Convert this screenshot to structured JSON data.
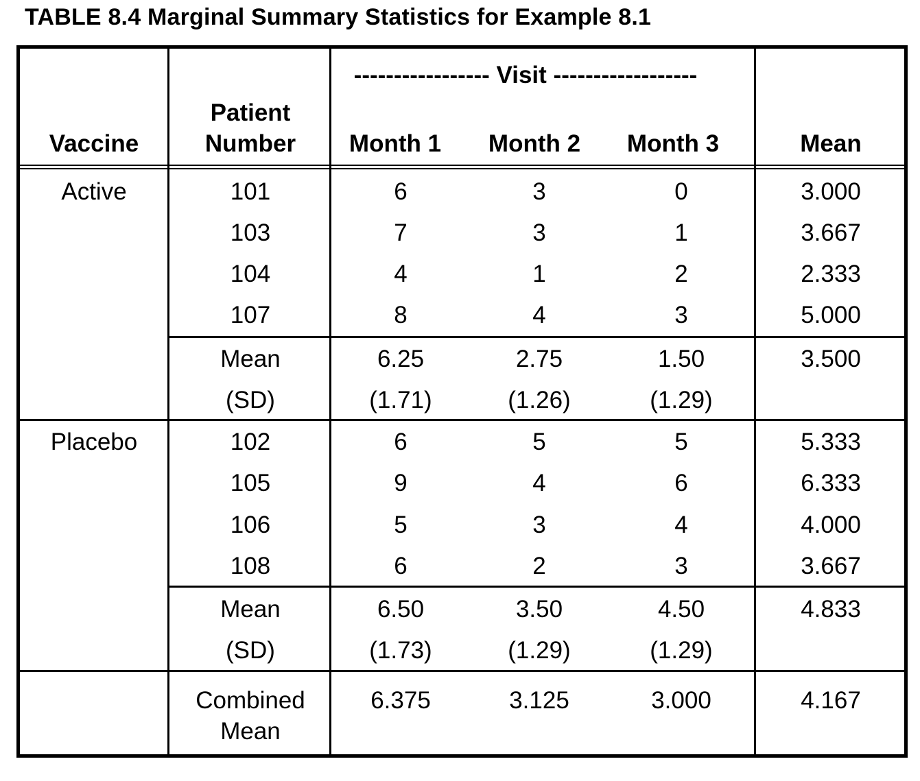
{
  "title": "TABLE 8.4  Marginal Summary Statistics for Example 8.1",
  "headers": {
    "vaccine": "Vaccine",
    "patient_line1": "Patient",
    "patient_line2": "Number",
    "visit": "----------------- Visit ------------------",
    "month1": "Month 1",
    "month2": "Month 2",
    "month3": "Month 3",
    "mean": "Mean"
  },
  "groups": [
    {
      "vaccine": "Active",
      "rows": [
        {
          "patient": "101",
          "m1": "6",
          "m2": "3",
          "m3": "0",
          "mean": "3.000"
        },
        {
          "patient": "103",
          "m1": "7",
          "m2": "3",
          "m3": "1",
          "mean": "3.667"
        },
        {
          "patient": "104",
          "m1": "4",
          "m2": "1",
          "m3": "2",
          "mean": "2.333"
        },
        {
          "patient": "107",
          "m1": "8",
          "m2": "4",
          "m3": "3",
          "mean": "5.000"
        }
      ],
      "summary": {
        "mean_label": "Mean",
        "sd_label": "(SD)",
        "m1": "6.25",
        "m2": "2.75",
        "m3": "1.50",
        "mean": "3.500",
        "sd1": "(1.71)",
        "sd2": "(1.26)",
        "sd3": "(1.29)"
      }
    },
    {
      "vaccine": "Placebo",
      "rows": [
        {
          "patient": "102",
          "m1": "6",
          "m2": "5",
          "m3": "5",
          "mean": "5.333"
        },
        {
          "patient": "105",
          "m1": "9",
          "m2": "4",
          "m3": "6",
          "mean": "6.333"
        },
        {
          "patient": "106",
          "m1": "5",
          "m2": "3",
          "m3": "4",
          "mean": "4.000"
        },
        {
          "patient": "108",
          "m1": "6",
          "m2": "2",
          "m3": "3",
          "mean": "3.667"
        }
      ],
      "summary": {
        "mean_label": "Mean",
        "sd_label": "(SD)",
        "m1": "6.50",
        "m2": "3.50",
        "m3": "4.50",
        "mean": "4.833",
        "sd1": "(1.73)",
        "sd2": "(1.29)",
        "sd3": "(1.29)"
      }
    }
  ],
  "combined": {
    "label_line1": "Combined",
    "label_line2": "Mean",
    "m1": "6.375",
    "m2": "3.125",
    "m3": "3.000",
    "mean": "4.167"
  }
}
